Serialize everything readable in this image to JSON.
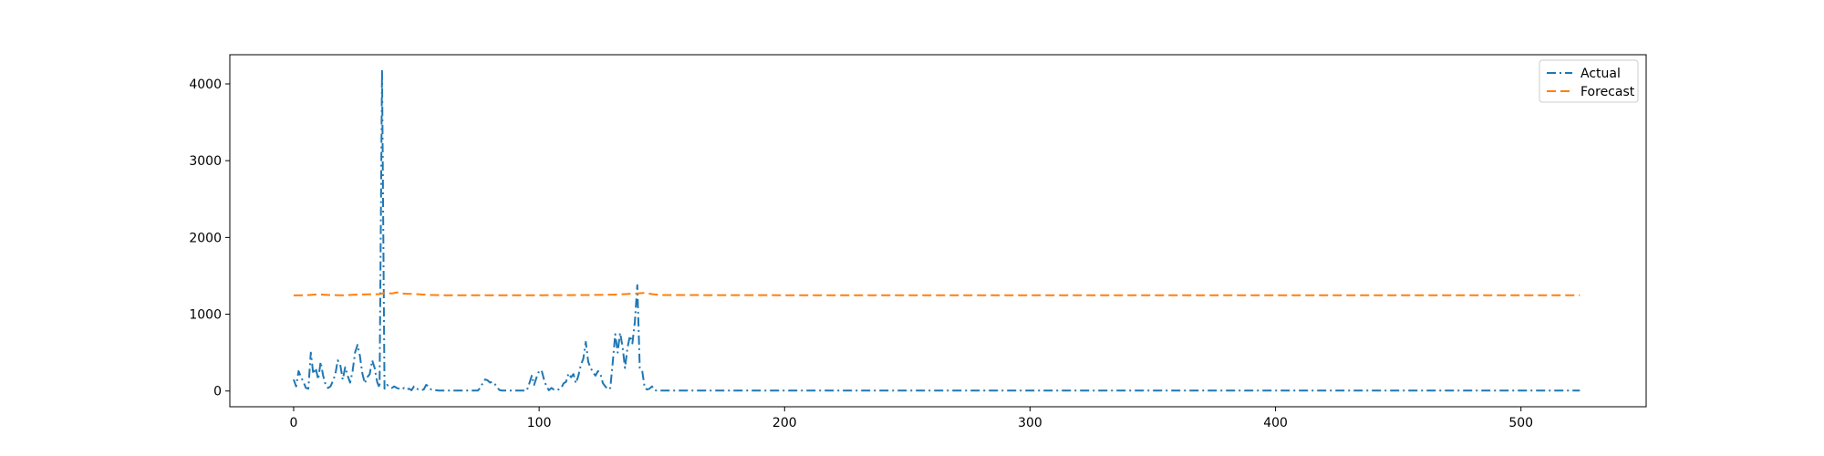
{
  "chart_data": {
    "type": "line",
    "title": "",
    "xlabel": "",
    "ylabel": "",
    "xlim": [
      -26,
      551
    ],
    "ylim": [
      -205,
      4380
    ],
    "x_ticks": [
      0,
      100,
      200,
      300,
      400,
      500
    ],
    "y_ticks": [
      0,
      1000,
      2000,
      3000,
      4000
    ],
    "grid": false,
    "legend_position": "top-right",
    "series": [
      {
        "name": "Actual",
        "color": "#1f77b4",
        "style": "dash-dot",
        "points": [
          [
            0,
            150
          ],
          [
            1,
            60
          ],
          [
            2,
            260
          ],
          [
            3,
            180
          ],
          [
            4,
            120
          ],
          [
            5,
            40
          ],
          [
            6,
            30
          ],
          [
            7,
            500
          ],
          [
            8,
            220
          ],
          [
            9,
            300
          ],
          [
            10,
            150
          ],
          [
            11,
            380
          ],
          [
            12,
            200
          ],
          [
            13,
            80
          ],
          [
            14,
            40
          ],
          [
            15,
            60
          ],
          [
            16,
            130
          ],
          [
            17,
            220
          ],
          [
            18,
            400
          ],
          [
            19,
            340
          ],
          [
            20,
            150
          ],
          [
            21,
            310
          ],
          [
            22,
            200
          ],
          [
            23,
            110
          ],
          [
            24,
            260
          ],
          [
            25,
            500
          ],
          [
            26,
            600
          ],
          [
            27,
            460
          ],
          [
            28,
            230
          ],
          [
            29,
            100
          ],
          [
            30,
            180
          ],
          [
            31,
            220
          ],
          [
            32,
            400
          ],
          [
            33,
            300
          ],
          [
            34,
            120
          ],
          [
            35,
            40
          ],
          [
            36,
            4180
          ],
          [
            37,
            30
          ],
          [
            38,
            80
          ],
          [
            39,
            60
          ],
          [
            40,
            40
          ],
          [
            41,
            60
          ],
          [
            42,
            40
          ],
          [
            43,
            30
          ],
          [
            44,
            20
          ],
          [
            45,
            40
          ],
          [
            46,
            20
          ],
          [
            47,
            30
          ],
          [
            48,
            10
          ],
          [
            49,
            60
          ],
          [
            50,
            30
          ],
          [
            51,
            20
          ],
          [
            52,
            10
          ],
          [
            53,
            20
          ],
          [
            54,
            80
          ],
          [
            55,
            60
          ],
          [
            56,
            20
          ],
          [
            57,
            10
          ],
          [
            58,
            10
          ],
          [
            59,
            5
          ],
          [
            60,
            5
          ],
          [
            65,
            5
          ],
          [
            70,
            5
          ],
          [
            75,
            5
          ],
          [
            76,
            40
          ],
          [
            77,
            100
          ],
          [
            78,
            150
          ],
          [
            79,
            140
          ],
          [
            80,
            110
          ],
          [
            81,
            120
          ],
          [
            82,
            90
          ],
          [
            83,
            40
          ],
          [
            84,
            10
          ],
          [
            85,
            5
          ],
          [
            90,
            5
          ],
          [
            95,
            5
          ],
          [
            96,
            100
          ],
          [
            97,
            200
          ],
          [
            98,
            80
          ],
          [
            99,
            180
          ],
          [
            100,
            260
          ],
          [
            101,
            270
          ],
          [
            102,
            150
          ],
          [
            103,
            60
          ],
          [
            104,
            10
          ],
          [
            105,
            40
          ],
          [
            106,
            20
          ],
          [
            107,
            30
          ],
          [
            108,
            20
          ],
          [
            109,
            40
          ],
          [
            110,
            100
          ],
          [
            111,
            120
          ],
          [
            112,
            230
          ],
          [
            113,
            180
          ],
          [
            114,
            220
          ],
          [
            115,
            100
          ],
          [
            116,
            200
          ],
          [
            117,
            340
          ],
          [
            118,
            420
          ],
          [
            119,
            640
          ],
          [
            120,
            380
          ],
          [
            121,
            300
          ],
          [
            122,
            240
          ],
          [
            123,
            200
          ],
          [
            124,
            260
          ],
          [
            125,
            220
          ],
          [
            126,
            100
          ],
          [
            127,
            60
          ],
          [
            128,
            20
          ],
          [
            129,
            40
          ],
          [
            130,
            380
          ],
          [
            131,
            740
          ],
          [
            132,
            500
          ],
          [
            133,
            760
          ],
          [
            134,
            580
          ],
          [
            135,
            300
          ],
          [
            136,
            560
          ],
          [
            137,
            720
          ],
          [
            138,
            620
          ],
          [
            139,
            900
          ],
          [
            140,
            1380
          ],
          [
            141,
            300
          ],
          [
            142,
            260
          ],
          [
            143,
            40
          ],
          [
            144,
            20
          ],
          [
            145,
            30
          ],
          [
            146,
            60
          ],
          [
            147,
            10
          ],
          [
            148,
            5
          ],
          [
            150,
            5
          ],
          [
            160,
            5
          ],
          [
            200,
            5
          ],
          [
            250,
            5
          ],
          [
            300,
            5
          ],
          [
            350,
            5
          ],
          [
            400,
            5
          ],
          [
            450,
            5
          ],
          [
            500,
            5
          ],
          [
            524,
            5
          ]
        ]
      },
      {
        "name": "Forecast",
        "color": "#ff7f0e",
        "style": "dashed",
        "points": [
          [
            0,
            1245
          ],
          [
            5,
            1248
          ],
          [
            10,
            1258
          ],
          [
            15,
            1250
          ],
          [
            20,
            1246
          ],
          [
            25,
            1255
          ],
          [
            30,
            1260
          ],
          [
            35,
            1262
          ],
          [
            37,
            1275
          ],
          [
            40,
            1270
          ],
          [
            42,
            1285
          ],
          [
            45,
            1268
          ],
          [
            50,
            1262
          ],
          [
            55,
            1252
          ],
          [
            60,
            1248
          ],
          [
            80,
            1248
          ],
          [
            100,
            1248
          ],
          [
            120,
            1250
          ],
          [
            130,
            1255
          ],
          [
            135,
            1262
          ],
          [
            140,
            1270
          ],
          [
            143,
            1278
          ],
          [
            146,
            1262
          ],
          [
            150,
            1250
          ],
          [
            200,
            1248
          ],
          [
            300,
            1248
          ],
          [
            400,
            1248
          ],
          [
            500,
            1248
          ],
          [
            524,
            1248
          ]
        ]
      }
    ]
  }
}
